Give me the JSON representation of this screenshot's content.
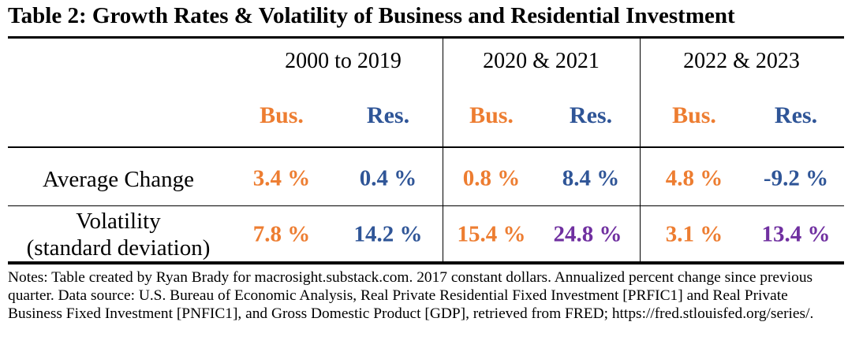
{
  "title": "Table 2: Growth Rates & Volatility of Business and Residential Investment",
  "colors": {
    "business": "#ED7D31",
    "residential": "#2F5597",
    "highlight": "#7030A0"
  },
  "periods": [
    "2000 to 2019",
    "2020 & 2021",
    "2022 & 2023"
  ],
  "subheaders": {
    "business": "Bus.",
    "residential": "Res."
  },
  "rows": [
    {
      "label": "Average Change",
      "values": [
        "3.4 %",
        "0.4 %",
        "0.8 %",
        "8.4 %",
        "4.8 %",
        "-9.2 %"
      ]
    },
    {
      "label_line1": "Volatility",
      "label_line2": "(standard deviation)",
      "values": [
        "7.8 %",
        "14.2 %",
        "15.4 %",
        "24.8 %",
        "3.1 %",
        "13.4 %"
      ]
    }
  ],
  "notes": "Notes: Table created by Ryan Brady for macrosight.substack.com. 2017 constant dollars. Annualized percent change since previous quarter. Data source: U.S. Bureau of Economic Analysis, Real Private Residential Fixed Investment [PRFIC1] and Real Private Business Fixed Investment [PNFIC1], and Gross Domestic Product [GDP], retrieved from FRED; https://fred.stlouisfed.org/series/."
}
